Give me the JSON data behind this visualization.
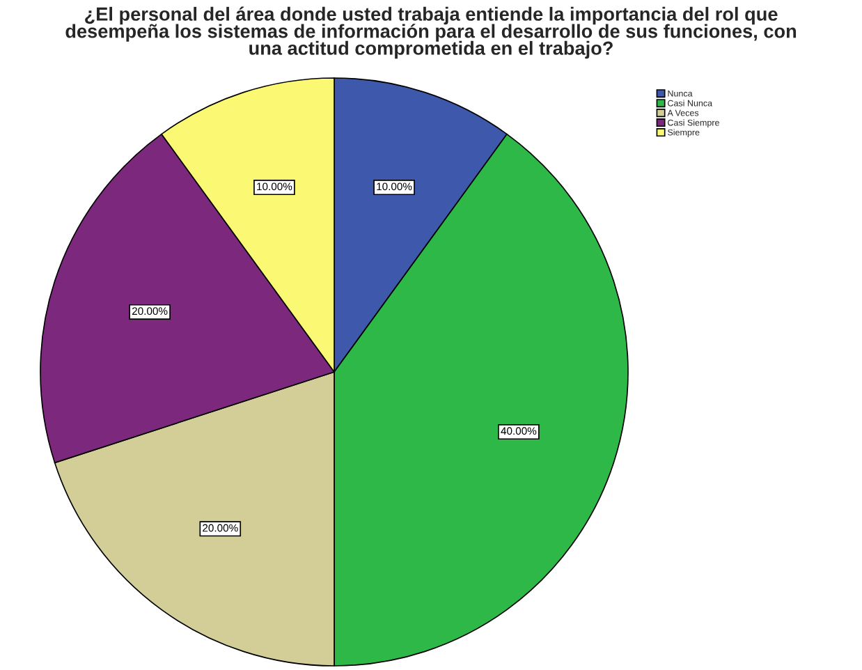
{
  "chart_data": {
    "type": "pie",
    "title": "¿El personal del área donde usted trabaja entiende la importancia del rol que\ndesempeña los sistemas de información para el desarrollo de sus funciones, con\nuna actitud comprometida en el trabajo?",
    "categories": [
      "Nunca",
      "Casi Nunca",
      "A Veces",
      "Casi Siempre",
      "Siempre"
    ],
    "values": [
      10,
      40,
      20,
      20,
      10
    ],
    "colors": [
      "#3e58ac",
      "#2eb848",
      "#d3ce97",
      "#7c287d",
      "#fbf873"
    ],
    "value_labels": [
      "10.00%",
      "40.00%",
      "20.00%",
      "20.00%",
      "10.00%"
    ],
    "legend": "top right"
  }
}
